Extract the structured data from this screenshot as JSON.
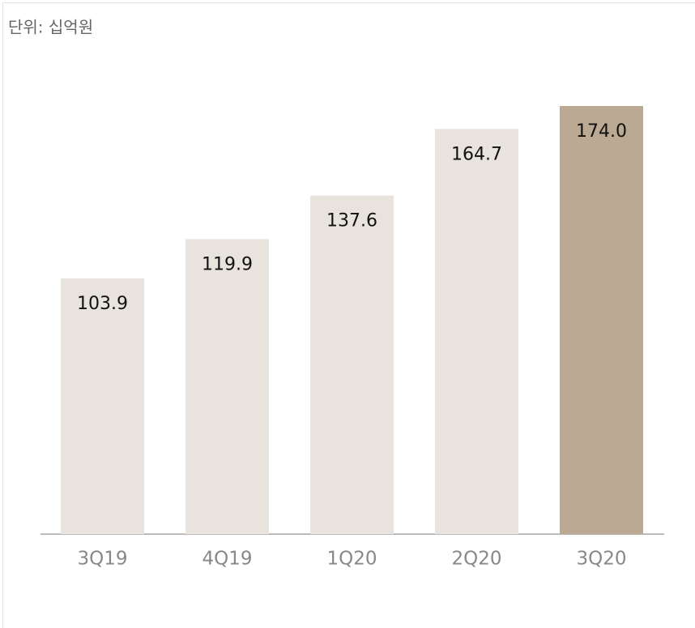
{
  "chart_data": {
    "type": "bar",
    "subtitle": "단위: 십억원",
    "categories": [
      "3Q19",
      "4Q19",
      "1Q20",
      "2Q20",
      "3Q20"
    ],
    "values": [
      103.9,
      119.9,
      137.6,
      164.7,
      174.0
    ],
    "value_labels": [
      "103.9",
      "119.9",
      "137.6",
      "164.7",
      "174.0"
    ],
    "colors": [
      "#e8e3dc",
      "#e8e3dc",
      "#e8e3dc",
      "#e8e3dc",
      "#bba993"
    ]
  }
}
